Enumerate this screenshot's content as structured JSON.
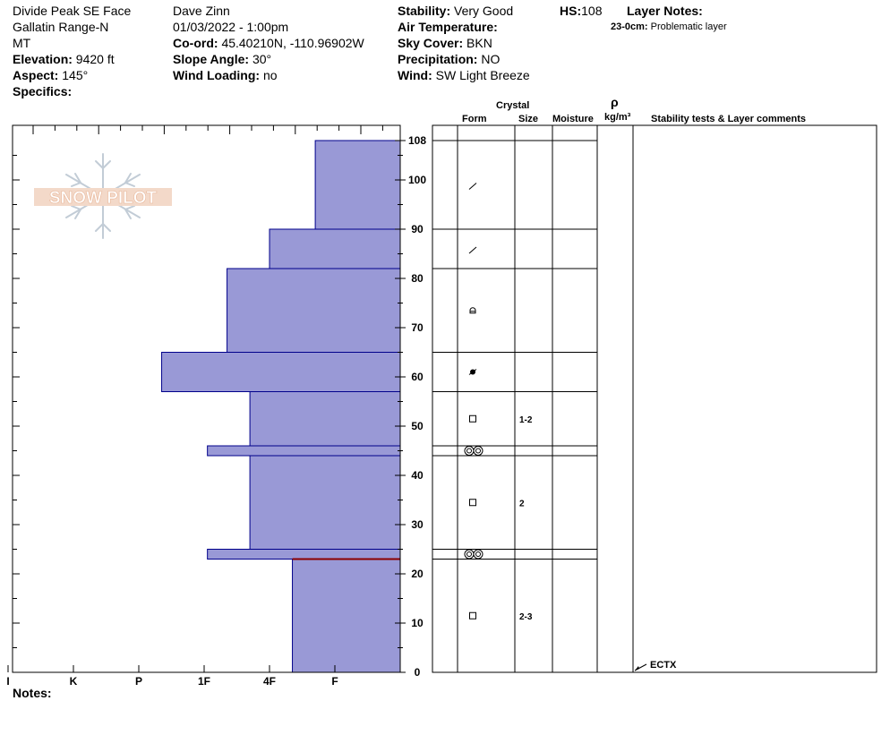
{
  "header": {
    "location": "Divide Peak SE Face",
    "range": "Gallatin Range-N",
    "state": "MT",
    "elevation_label": "Elevation:",
    "elevation_value": "9420 ft",
    "aspect_label": "Aspect:",
    "aspect_value": "145°",
    "specifics_label": "Specifics:",
    "observer": "Dave Zinn",
    "datetime": "01/03/2022 - 1:00pm",
    "coord_label": "Co-ord:",
    "coord_value": "45.40210N, -110.96902W",
    "slope_label": "Slope Angle:",
    "slope_value": "30°",
    "wind_loading_label": "Wind Loading:",
    "wind_loading_value": "no",
    "stability_label": "Stability:",
    "stability_value": "Very Good",
    "air_temp_label": "Air Temperature:",
    "sky_label": "Sky Cover:",
    "sky_value": "BKN",
    "precip_label": "Precipitation:",
    "precip_value": "NO",
    "wind_label": "Wind:",
    "wind_value": "SW Light Breeze",
    "hs_label": "HS:",
    "hs_value": "108",
    "layer_notes_label": "Layer Notes:",
    "layer_note_depth": "23-0cm:",
    "layer_note_text": "Problematic layer"
  },
  "logo_text": "SNOW PILOT",
  "notes_label": "Notes:",
  "table_headers": {
    "crystal": "Crystal",
    "form": "Form",
    "size": "Size",
    "moisture": "Moisture",
    "rho": "ρ",
    "density_unit": "kg/m³",
    "comments": "Stability tests & Layer comments"
  },
  "colors": {
    "hardness_fill": "#9999d6",
    "hardness_stroke": "#00008b",
    "marker_line": "#8b0000"
  },
  "chart_data": {
    "type": "bar",
    "orientation": "horizontal",
    "y_axis_label": "",
    "ylim": [
      0,
      108
    ],
    "y_ticks": [
      0,
      10,
      20,
      30,
      40,
      50,
      60,
      70,
      80,
      90,
      100,
      108
    ],
    "hardness_scale": [
      "I",
      "K",
      "P",
      "1F",
      "4F",
      "F"
    ],
    "hardness_values": {
      "F": 1,
      "4F": 2,
      "1F": 3,
      "P": 4,
      "K": 5,
      "I": 6
    },
    "layers": [
      {
        "top": 108,
        "bottom": 90,
        "hardness": 1.3,
        "form": "decomposing",
        "size": ""
      },
      {
        "top": 90,
        "bottom": 82,
        "hardness": 2.0,
        "form": "decomposing",
        "size": ""
      },
      {
        "top": 82,
        "bottom": 65,
        "hardness": 2.65,
        "form": "rounds",
        "size": ""
      },
      {
        "top": 65,
        "bottom": 57,
        "hardness": 3.65,
        "form": "melt-freeze",
        "size": ""
      },
      {
        "top": 57,
        "bottom": 46,
        "hardness": 2.3,
        "form": "faceted",
        "size": "1-2"
      },
      {
        "top": 46,
        "bottom": 44,
        "hardness": 2.95,
        "form": "surface-hoar-like",
        "size": ""
      },
      {
        "top": 44,
        "bottom": 25,
        "hardness": 2.3,
        "form": "faceted",
        "size": "2"
      },
      {
        "top": 25,
        "bottom": 23,
        "hardness": 2.95,
        "form": "surface-hoar-like",
        "size": ""
      },
      {
        "top": 23,
        "bottom": 0,
        "hardness": 1.65,
        "form": "faceted",
        "size": "2-3"
      }
    ],
    "marker_depth": 23,
    "stability_tests": [
      {
        "depth": 0,
        "label": "ECTX"
      }
    ]
  }
}
